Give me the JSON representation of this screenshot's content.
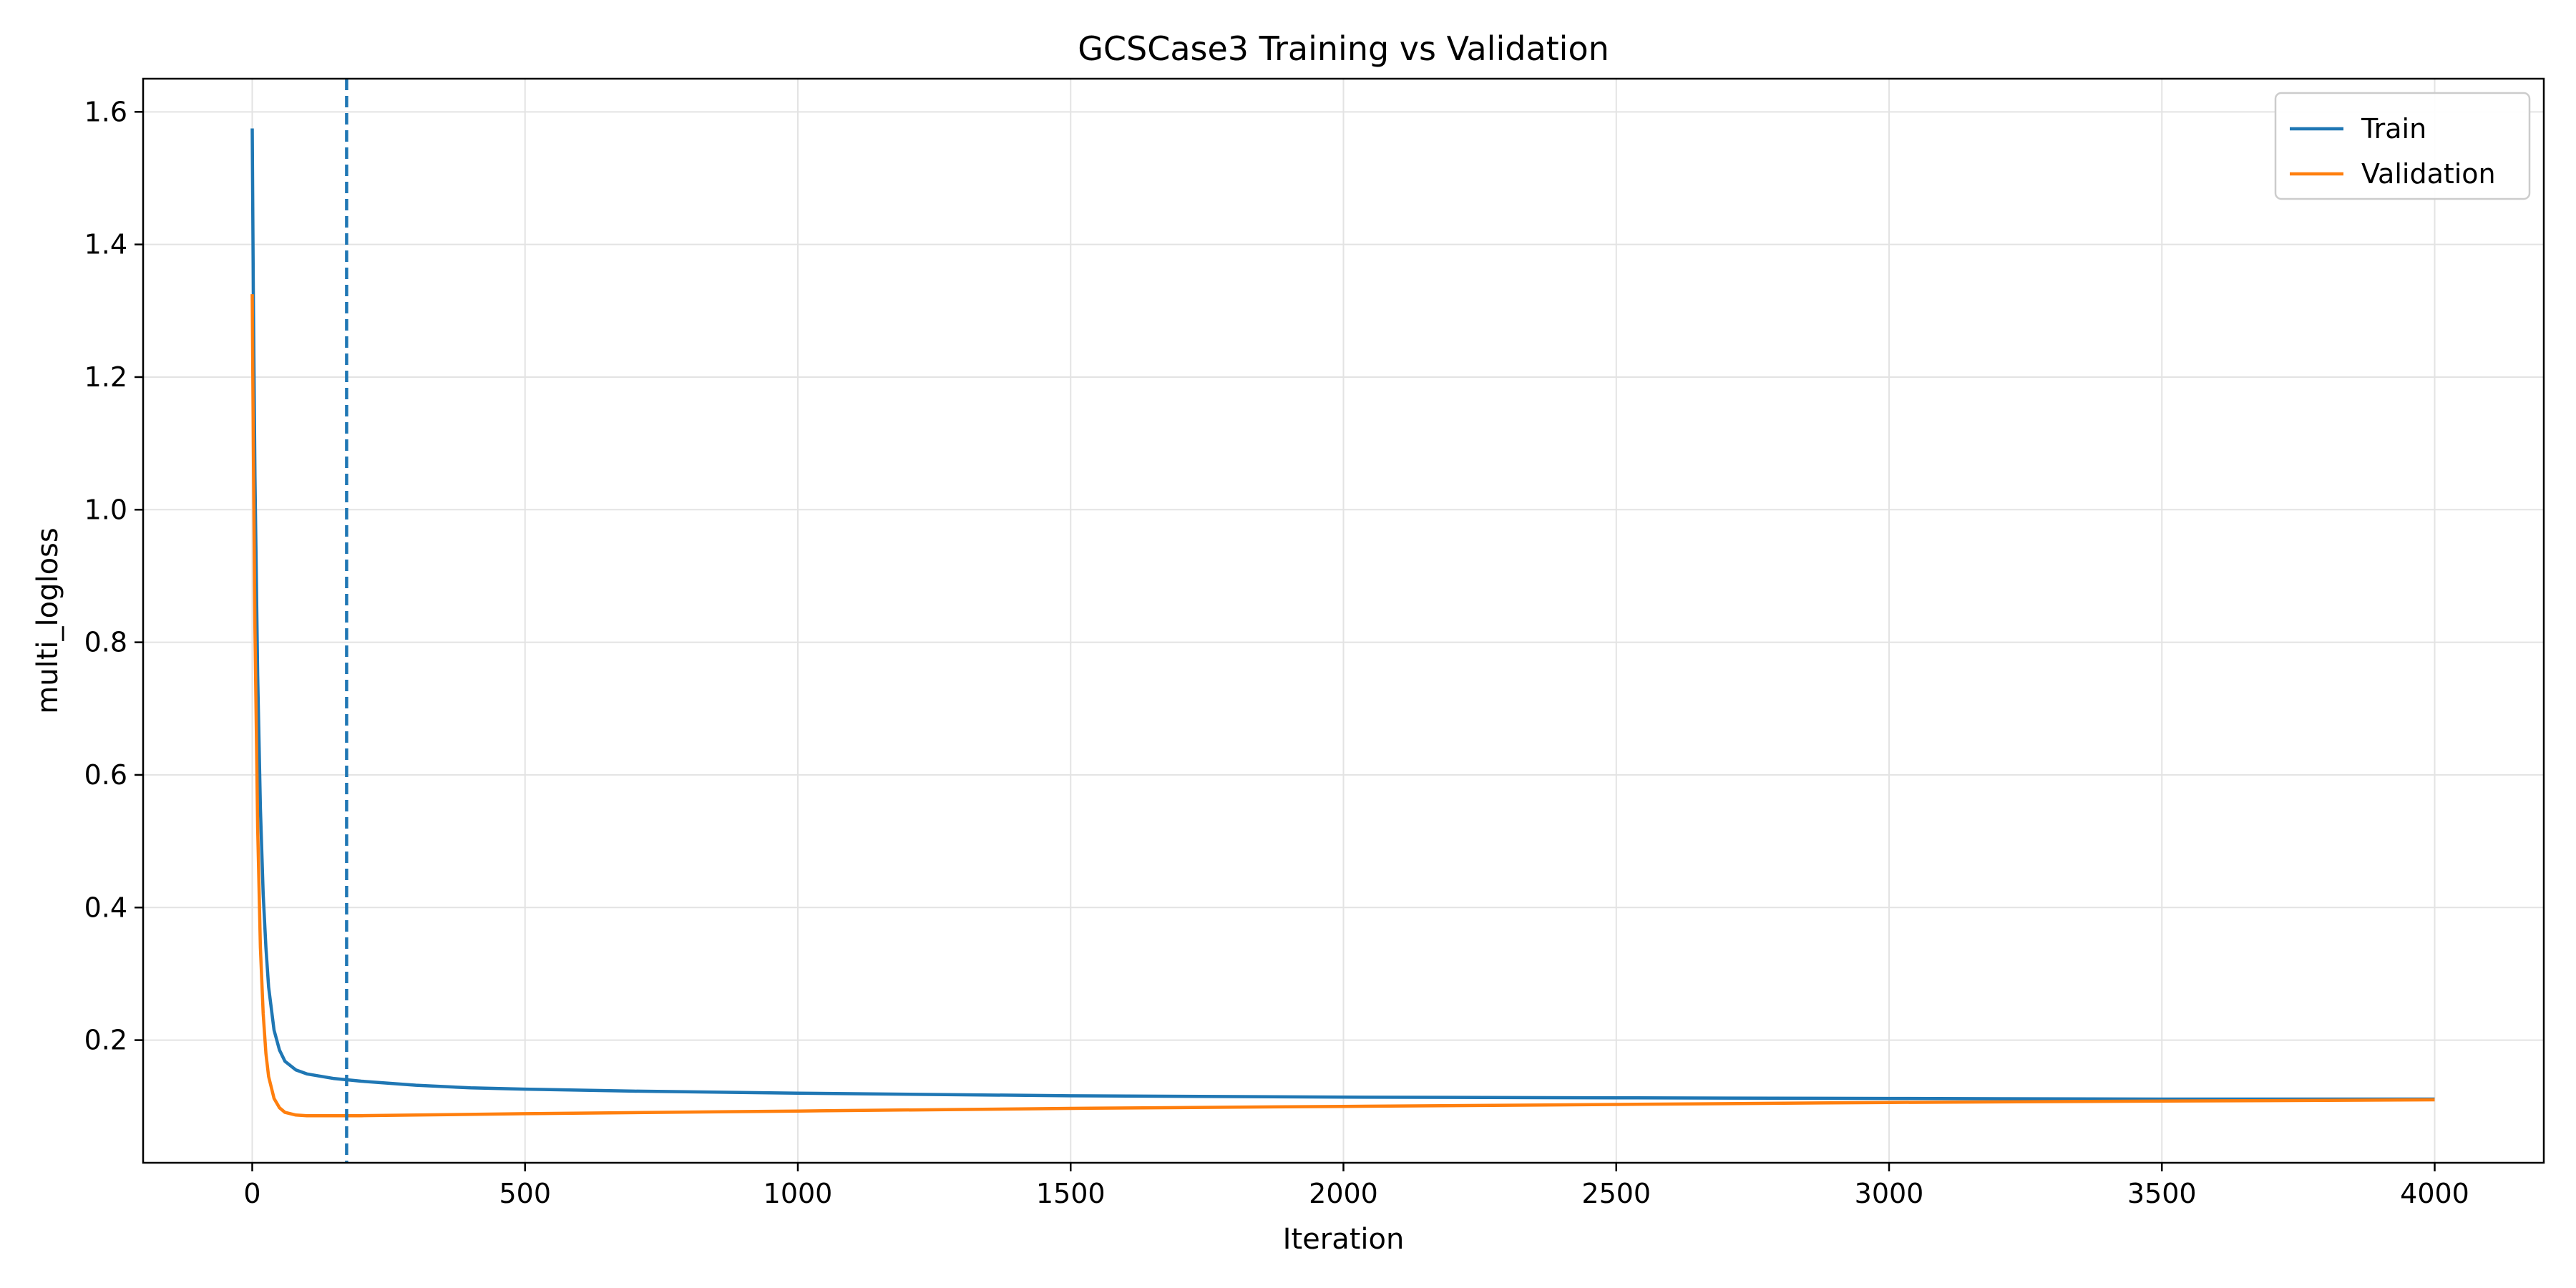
{
  "chart_data": {
    "type": "line",
    "title": "GCSCase3 Training vs Validation",
    "xlabel": "Iteration",
    "ylabel": "multi_logloss",
    "xlim": [
      -200,
      4200
    ],
    "ylim": [
      0.015,
      1.65
    ],
    "xticks": [
      0,
      500,
      1000,
      1500,
      2000,
      2500,
      3000,
      3500,
      4000
    ],
    "xtick_labels": [
      "0",
      "500",
      "1000",
      "1500",
      "2000",
      "2500",
      "3000",
      "3500",
      "4000"
    ],
    "yticks": [
      0.2,
      0.4,
      0.6,
      0.8,
      1.0,
      1.2,
      1.4,
      1.6
    ],
    "ytick_labels": [
      "0.2",
      "0.4",
      "0.6",
      "0.8",
      "1.0",
      "1.2",
      "1.4",
      "1.6"
    ],
    "grid": true,
    "legend_position": "top-right",
    "vline": {
      "x": 173,
      "color": "#1f77b4",
      "style": "dashed"
    },
    "series": [
      {
        "name": "Train",
        "color": "#1f77b4",
        "x": [
          0,
          2,
          5,
          10,
          15,
          20,
          25,
          30,
          40,
          50,
          60,
          80,
          100,
          150,
          200,
          300,
          400,
          500,
          700,
          1000,
          1500,
          2000,
          2500,
          3000,
          3500,
          4000
        ],
        "y": [
          1.575,
          1.33,
          1.05,
          0.75,
          0.55,
          0.42,
          0.34,
          0.28,
          0.215,
          0.185,
          0.168,
          0.155,
          0.149,
          0.142,
          0.138,
          0.132,
          0.128,
          0.126,
          0.123,
          0.12,
          0.116,
          0.114,
          0.113,
          0.112,
          0.111,
          0.111
        ]
      },
      {
        "name": "Validation",
        "color": "#ff7f0e",
        "x": [
          0,
          2,
          5,
          10,
          15,
          20,
          25,
          30,
          40,
          50,
          60,
          80,
          100,
          150,
          200,
          300,
          500,
          1000,
          1500,
          2000,
          2500,
          3000,
          3500,
          4000
        ],
        "y": [
          1.325,
          1.1,
          0.82,
          0.52,
          0.34,
          0.24,
          0.18,
          0.145,
          0.112,
          0.098,
          0.091,
          0.087,
          0.086,
          0.086,
          0.086,
          0.087,
          0.089,
          0.093,
          0.097,
          0.1,
          0.103,
          0.106,
          0.108,
          0.11
        ]
      }
    ]
  }
}
